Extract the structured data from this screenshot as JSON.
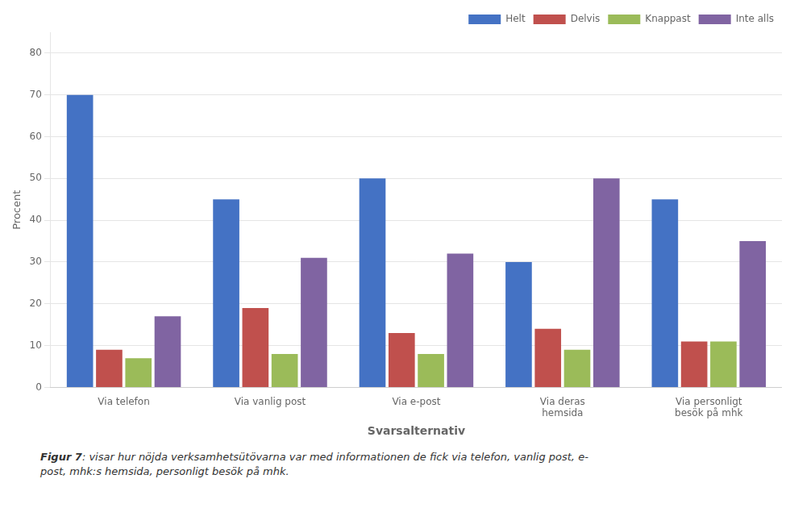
{
  "chart_data": {
    "type": "bar",
    "categories": [
      "Via telefon",
      "Via vanlig post",
      "Via e-post",
      "Via deras\nhemsida",
      "Via personligt\nbesök på mhk"
    ],
    "series": [
      {
        "name": "Helt",
        "color": "#4472C4",
        "values": [
          70,
          45,
          50,
          30,
          45
        ]
      },
      {
        "name": "Delvis",
        "color": "#C0504D",
        "values": [
          9,
          19,
          13,
          14,
          11
        ]
      },
      {
        "name": "Knappast",
        "color": "#9BBB59",
        "values": [
          7,
          8,
          8,
          9,
          11
        ]
      },
      {
        "name": "Inte alls",
        "color": "#8064A2",
        "values": [
          17,
          31,
          32,
          50,
          35
        ]
      }
    ],
    "ylabel": "Procent",
    "xlabel": "Svarsalternativ",
    "ylim": [
      0,
      85
    ],
    "yticks": [
      0,
      10,
      20,
      30,
      40,
      50,
      60,
      70,
      80
    ],
    "grid": true,
    "legend": "upper right",
    "caption": [
      "Figur 7",
      ": visar hur nöjda verksamhetsütövarna var med informationen de fick via telefon, vanlig post, e-\npost, mhk:s hemsida, personligt besök på mhk."
    ]
  }
}
